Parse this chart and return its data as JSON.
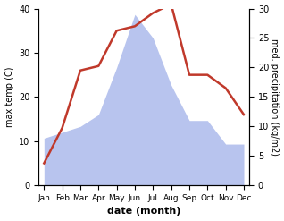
{
  "months": [
    "Jan",
    "Feb",
    "Mar",
    "Apr",
    "May",
    "Jun",
    "Jul",
    "Aug",
    "Sep",
    "Oct",
    "Nov",
    "Dec"
  ],
  "temperature": [
    5,
    13,
    26,
    27,
    35,
    36,
    39,
    41,
    25,
    25,
    22,
    16
  ],
  "precipitation": [
    8,
    9,
    10,
    12,
    20,
    29,
    25,
    17,
    11,
    11,
    7,
    7
  ],
  "temp_color": "#c0392b",
  "precip_color_fill": "#b8c4ee",
  "xlabel": "date (month)",
  "ylabel_left": "max temp (C)",
  "ylabel_right": "med. precipitation (kg/m2)",
  "ylim_left": [
    0,
    40
  ],
  "ylim_right": [
    0,
    30
  ],
  "yticks_left": [
    0,
    10,
    20,
    30,
    40
  ],
  "yticks_right": [
    0,
    5,
    10,
    15,
    20,
    25,
    30
  ]
}
